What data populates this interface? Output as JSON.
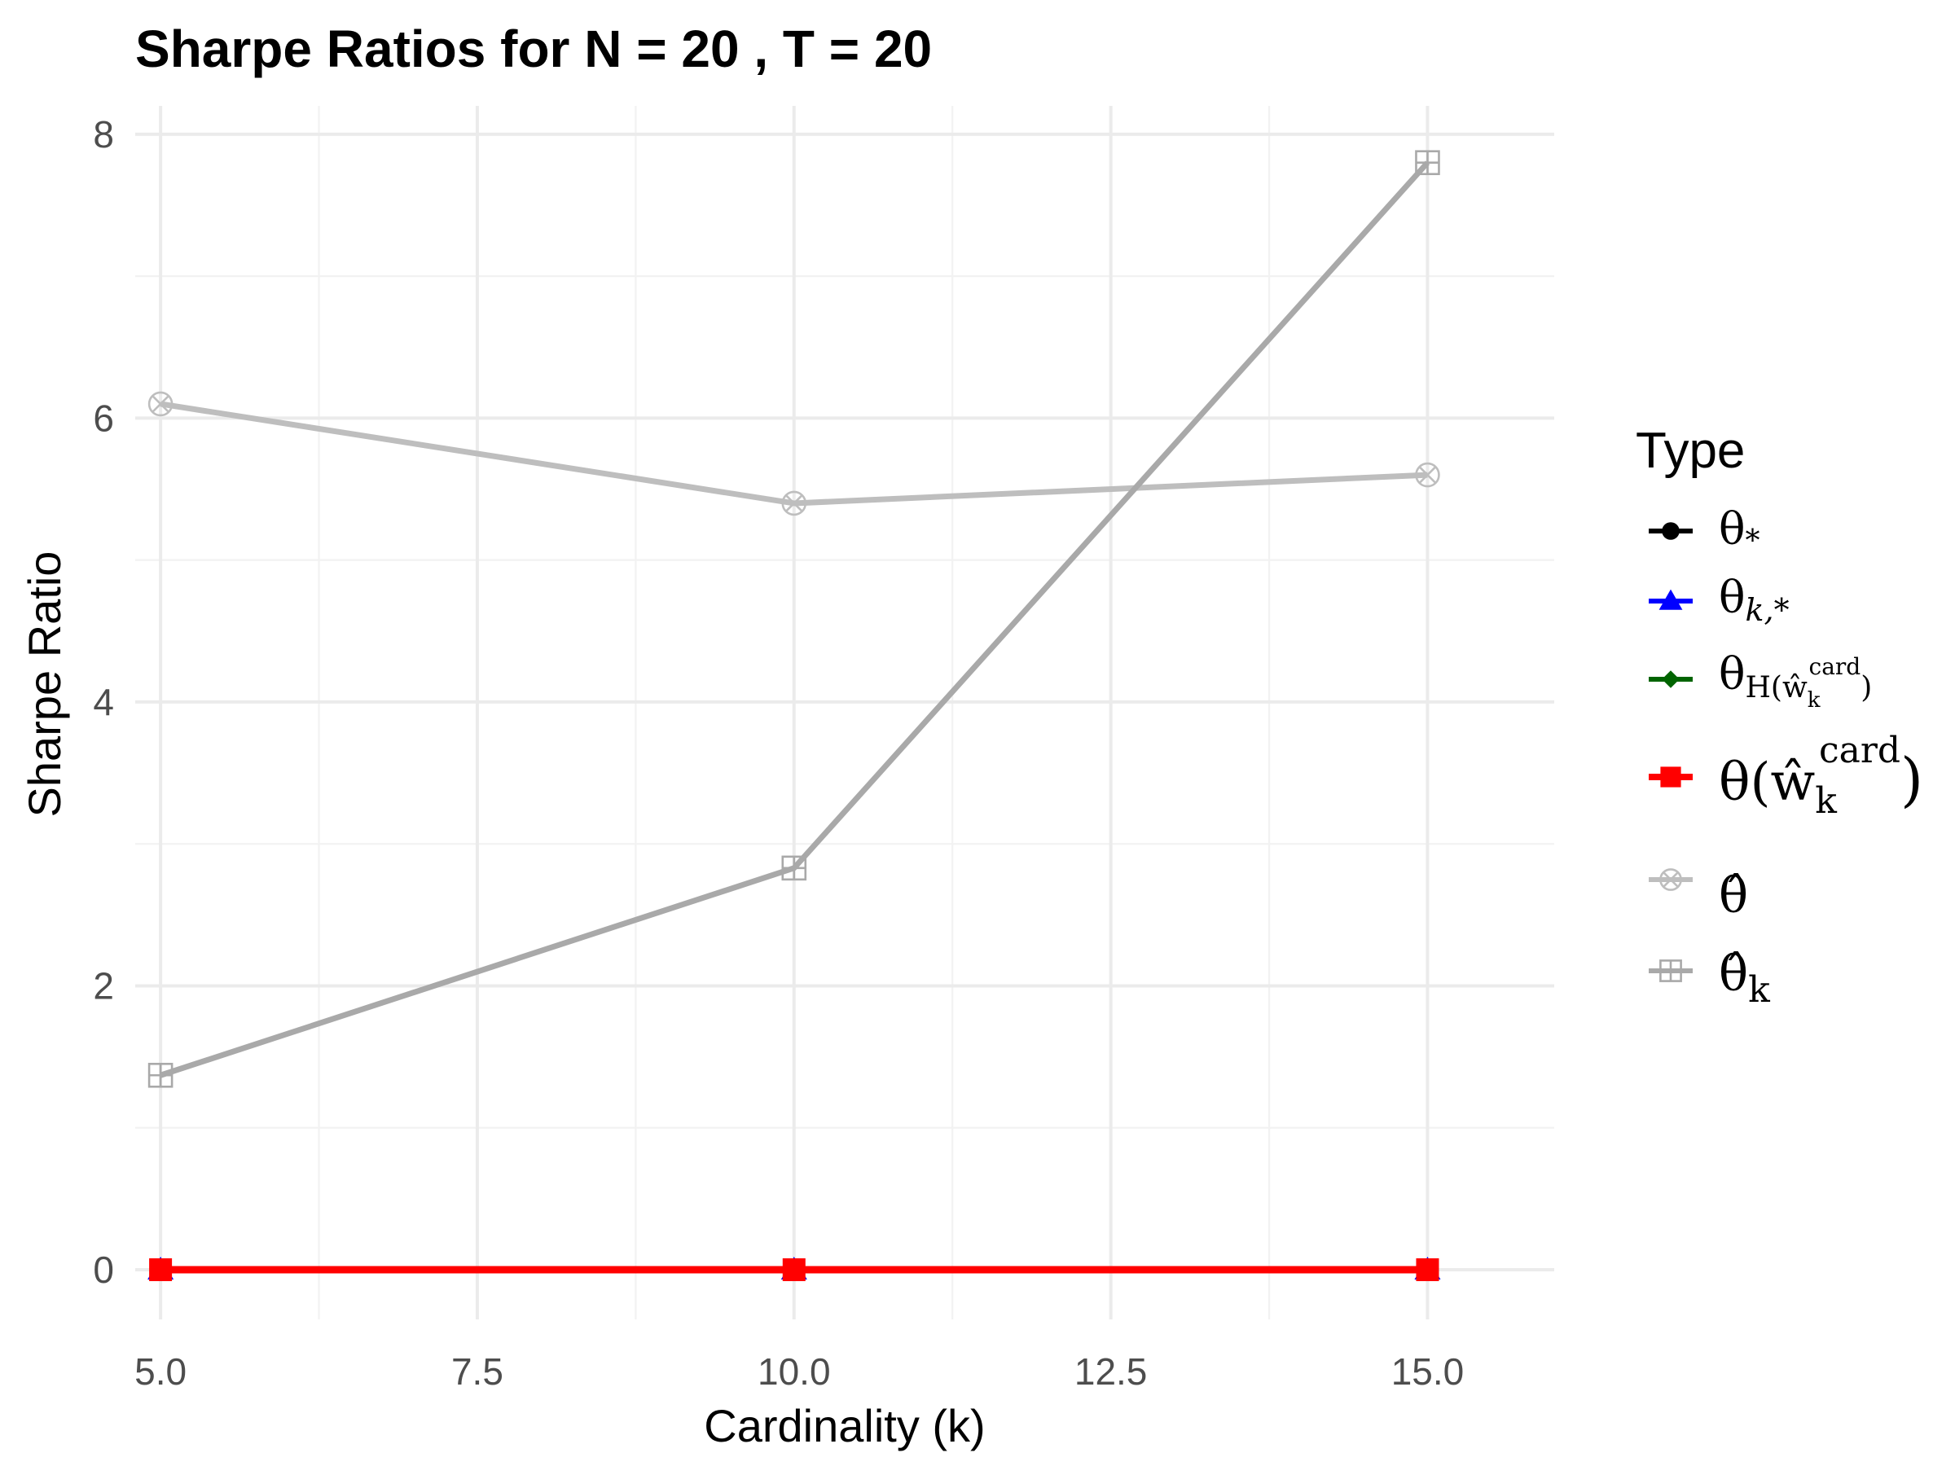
{
  "chart_data": {
    "type": "line",
    "title": "Sharpe Ratios for N = 20 , T = 20",
    "xlabel": "Cardinality (k)",
    "ylabel": "Sharpe Ratio",
    "xlim": [
      4.8,
      16.0
    ],
    "ylim": [
      -0.35,
      8.2
    ],
    "x_ticks": [
      5.0,
      7.5,
      10.0,
      12.5,
      15.0
    ],
    "x_tick_labels": [
      "5.0",
      "7.5",
      "10.0",
      "12.5",
      "15.0"
    ],
    "y_ticks": [
      0,
      2,
      4,
      6,
      8
    ],
    "y_tick_labels": [
      "0",
      "2",
      "4",
      "6",
      "8"
    ],
    "grid": true,
    "legend_position": "right",
    "legend_title": "Type",
    "series": [
      {
        "name": "θ*",
        "color": "#000000",
        "marker": "circle",
        "x": [
          5,
          10,
          15
        ],
        "y": [
          0,
          0,
          0
        ]
      },
      {
        "name": "θk,*",
        "color": "#0000ff",
        "marker": "triangle",
        "x": [
          5,
          10,
          15
        ],
        "y": [
          0,
          0,
          0
        ]
      },
      {
        "name": "θH(ŵkcard)",
        "color": "#006400",
        "marker": "diamond",
        "x": [
          5,
          10,
          15
        ],
        "y": [
          0,
          0,
          0
        ]
      },
      {
        "name": "θ(ŵkcard)",
        "color": "#ff0000",
        "marker": "square-filled",
        "x": [
          5,
          10,
          15
        ],
        "y": [
          0,
          0,
          0
        ]
      },
      {
        "name": "θ̂",
        "color": "#bebebe",
        "marker": "circle-x",
        "x": [
          5,
          10,
          15
        ],
        "y": [
          6.1,
          5.4,
          5.6
        ]
      },
      {
        "name": "θ̂k",
        "color": "#a9a9a9",
        "marker": "square-plus",
        "x": [
          5,
          10,
          15
        ],
        "y": [
          1.37,
          2.83,
          7.8
        ]
      }
    ]
  },
  "legend": {
    "items": [
      {
        "base": "θ",
        "sub": "*",
        "sup": ""
      },
      {
        "base": "θ",
        "sub": "k,*",
        "sup": ""
      },
      {
        "base": "θ",
        "sub": "H(ŵ",
        "subsub": "k",
        "subsup": "card",
        "tail": ")"
      },
      {
        "base": "θ(ŵ",
        "sub": "k",
        "sup": "card",
        "tail": ")"
      },
      {
        "base": "θ̂",
        "sub": "",
        "sup": ""
      },
      {
        "base": "θ̂",
        "sub": "k",
        "sup": ""
      }
    ]
  }
}
